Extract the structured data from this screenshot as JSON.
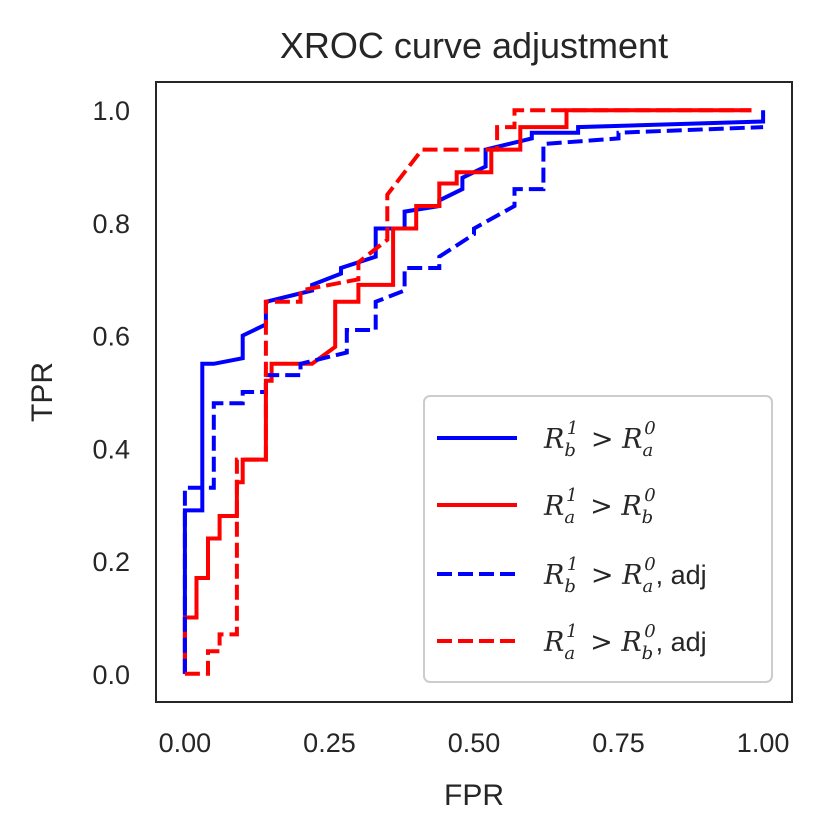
{
  "chart_data": {
    "type": "line",
    "title": "XROC curve adjustment",
    "xlabel": "FPR",
    "ylabel": "TPR",
    "xlim": [
      -0.05,
      1.05
    ],
    "ylim": [
      -0.05,
      1.05
    ],
    "xticks": [
      0.0,
      0.25,
      0.5,
      0.75,
      1.0
    ],
    "xtick_labels": [
      "0.00",
      "0.25",
      "0.50",
      "0.75",
      "1.00"
    ],
    "yticks": [
      0.0,
      0.2,
      0.4,
      0.6,
      0.8,
      1.0
    ],
    "ytick_labels": [
      "0.0",
      "0.2",
      "0.4",
      "0.6",
      "0.8",
      "1.0"
    ],
    "grid": false,
    "legend_position": "lower-right",
    "series": [
      {
        "name": "R_b^1 > R_a^0",
        "color": "#0000ff",
        "style": "solid",
        "x": [
          0.0,
          0.0,
          0.03,
          0.03,
          0.05,
          0.05,
          0.1,
          0.1,
          0.14,
          0.14,
          0.22,
          0.22,
          0.27,
          0.27,
          0.33,
          0.33,
          0.38,
          0.38,
          0.44,
          0.44,
          0.48,
          0.48,
          0.52,
          0.52,
          0.6,
          0.6,
          0.68,
          0.68,
          1.0,
          1.0
        ],
        "y": [
          0.0,
          0.29,
          0.29,
          0.55,
          0.55,
          0.55,
          0.56,
          0.6,
          0.62,
          0.66,
          0.68,
          0.69,
          0.71,
          0.72,
          0.74,
          0.79,
          0.79,
          0.82,
          0.83,
          0.84,
          0.86,
          0.88,
          0.9,
          0.93,
          0.95,
          0.96,
          0.96,
          0.97,
          0.98,
          1.0
        ]
      },
      {
        "name": "R_a^1 > R_b^0",
        "color": "#ff0000",
        "style": "solid",
        "x": [
          0.0,
          0.0,
          0.02,
          0.02,
          0.04,
          0.04,
          0.06,
          0.06,
          0.09,
          0.09,
          0.1,
          0.1,
          0.12,
          0.12,
          0.14,
          0.14,
          0.15,
          0.15,
          0.22,
          0.22,
          0.26,
          0.26,
          0.3,
          0.3,
          0.36,
          0.36,
          0.4,
          0.4,
          0.44,
          0.44,
          0.47,
          0.47,
          0.53,
          0.53,
          0.58,
          0.58,
          0.62,
          0.62,
          0.66,
          0.66,
          0.98
        ],
        "y": [
          0.0,
          0.1,
          0.1,
          0.17,
          0.17,
          0.24,
          0.24,
          0.28,
          0.28,
          0.34,
          0.34,
          0.38,
          0.38,
          0.38,
          0.38,
          0.52,
          0.52,
          0.55,
          0.55,
          0.55,
          0.58,
          0.66,
          0.66,
          0.69,
          0.69,
          0.79,
          0.79,
          0.83,
          0.83,
          0.87,
          0.87,
          0.89,
          0.89,
          0.93,
          0.93,
          0.97,
          0.97,
          0.97,
          0.97,
          1.0,
          1.0
        ]
      },
      {
        "name": "R_b^1 > R_a^0, adj",
        "color": "#0000ff",
        "style": "dashed",
        "x": [
          0.0,
          0.0,
          0.05,
          0.05,
          0.1,
          0.1,
          0.14,
          0.14,
          0.2,
          0.2,
          0.28,
          0.28,
          0.33,
          0.33,
          0.38,
          0.38,
          0.44,
          0.44,
          0.5,
          0.5,
          0.57,
          0.57,
          0.62,
          0.62,
          0.75,
          0.75,
          1.0,
          1.0
        ],
        "y": [
          0.0,
          0.33,
          0.33,
          0.48,
          0.48,
          0.5,
          0.5,
          0.53,
          0.53,
          0.55,
          0.57,
          0.61,
          0.61,
          0.66,
          0.68,
          0.72,
          0.72,
          0.74,
          0.78,
          0.79,
          0.83,
          0.86,
          0.86,
          0.94,
          0.95,
          0.96,
          0.97,
          0.97
        ]
      },
      {
        "name": "R_a^1 > R_b^0, adj",
        "color": "#ff0000",
        "style": "dashed",
        "x": [
          0.0,
          0.0,
          0.04,
          0.04,
          0.06,
          0.06,
          0.09,
          0.09,
          0.14,
          0.14,
          0.2,
          0.2,
          0.3,
          0.3,
          0.35,
          0.35,
          0.41,
          0.41,
          0.48,
          0.48,
          0.54,
          0.54,
          0.57,
          0.57,
          0.98
        ],
        "y": [
          0.0,
          0.0,
          0.0,
          0.04,
          0.04,
          0.07,
          0.07,
          0.38,
          0.38,
          0.66,
          0.66,
          0.68,
          0.7,
          0.73,
          0.77,
          0.85,
          0.93,
          0.93,
          0.93,
          0.93,
          0.93,
          0.97,
          0.97,
          1.0,
          1.0
        ]
      }
    ]
  }
}
